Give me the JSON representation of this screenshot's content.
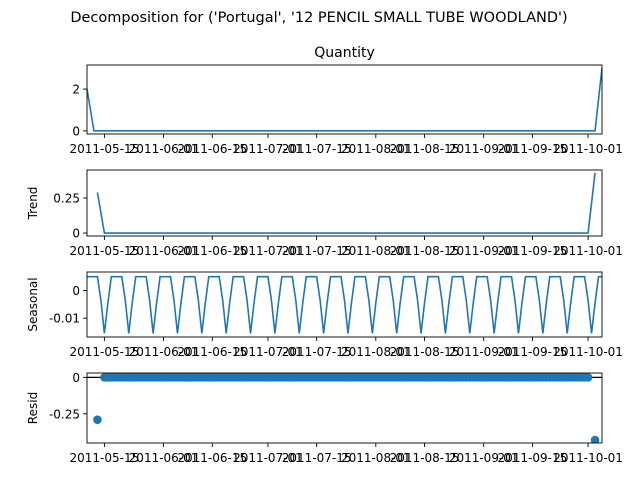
{
  "figure": {
    "suptitle": "Decomposition for ('Portugal', '12 PENCIL SMALL TUBE WOODLAND')"
  },
  "x_tick_labels": [
    "2011-05-15",
    "2011-06-01",
    "2011-06-15",
    "2011-07-01",
    "2011-07-15",
    "2011-08-01",
    "2011-08-15",
    "2011-09-01",
    "2011-09-15",
    "2011-10-01"
  ],
  "chart_data": [
    {
      "type": "line",
      "title": "Quantity",
      "ylabel": "",
      "xlim": [
        "2011-05-10",
        "2011-10-05"
      ],
      "ylim": [
        -0.15,
        3.15
      ],
      "yticks": [
        0,
        2
      ],
      "color": "#1f77b4",
      "series": [
        {
          "points": [
            [
              "2011-05-10",
              2.0
            ],
            [
              "2011-05-12",
              0.0
            ],
            [
              "2011-10-03",
              0.0
            ],
            [
              "2011-10-05",
              3.0
            ]
          ]
        }
      ]
    },
    {
      "type": "line",
      "title": "",
      "ylabel": "Trend",
      "xlim": [
        "2011-05-10",
        "2011-10-05"
      ],
      "ylim": [
        -0.021,
        0.45
      ],
      "yticks": [
        0.0,
        0.25
      ],
      "color": "#1f77b4",
      "series": [
        {
          "points": [
            [
              "2011-05-13",
              0.29
            ],
            [
              "2011-05-15",
              0.0
            ],
            [
              "2011-10-01",
              0.0
            ],
            [
              "2011-10-03",
              0.43
            ]
          ]
        }
      ]
    },
    {
      "type": "line",
      "title": "",
      "ylabel": "Seasonal",
      "xlim": [
        "2011-05-10",
        "2011-10-05"
      ],
      "ylim": [
        -0.0168,
        0.0067
      ],
      "yticks": [
        0.0,
        -0.01
      ],
      "color": "#1f77b4",
      "seasonal_period_days": 7,
      "seasonal_pattern": [
        0.005,
        0.005,
        0.005,
        0.005,
        -0.0035,
        -0.0155,
        -0.0045
      ],
      "series": [
        {
          "start": "2011-05-10",
          "end": "2011-10-05"
        }
      ]
    },
    {
      "type": "scatter",
      "title": "",
      "ylabel": "Resid",
      "xlim": [
        "2011-05-10",
        "2011-10-05"
      ],
      "ylim": [
        -0.45,
        0.03
      ],
      "yticks": [
        0.0,
        -0.25
      ],
      "color": "#1f77b4",
      "zero_line": true,
      "series": [
        {
          "points": [
            [
              "2011-05-13",
              -0.29
            ],
            [
              "2011-10-03",
              -0.43
            ]
          ],
          "zero_residuals_range": [
            "2011-05-15",
            "2011-10-01"
          ],
          "zero_residual_value": 0.0
        }
      ]
    }
  ]
}
